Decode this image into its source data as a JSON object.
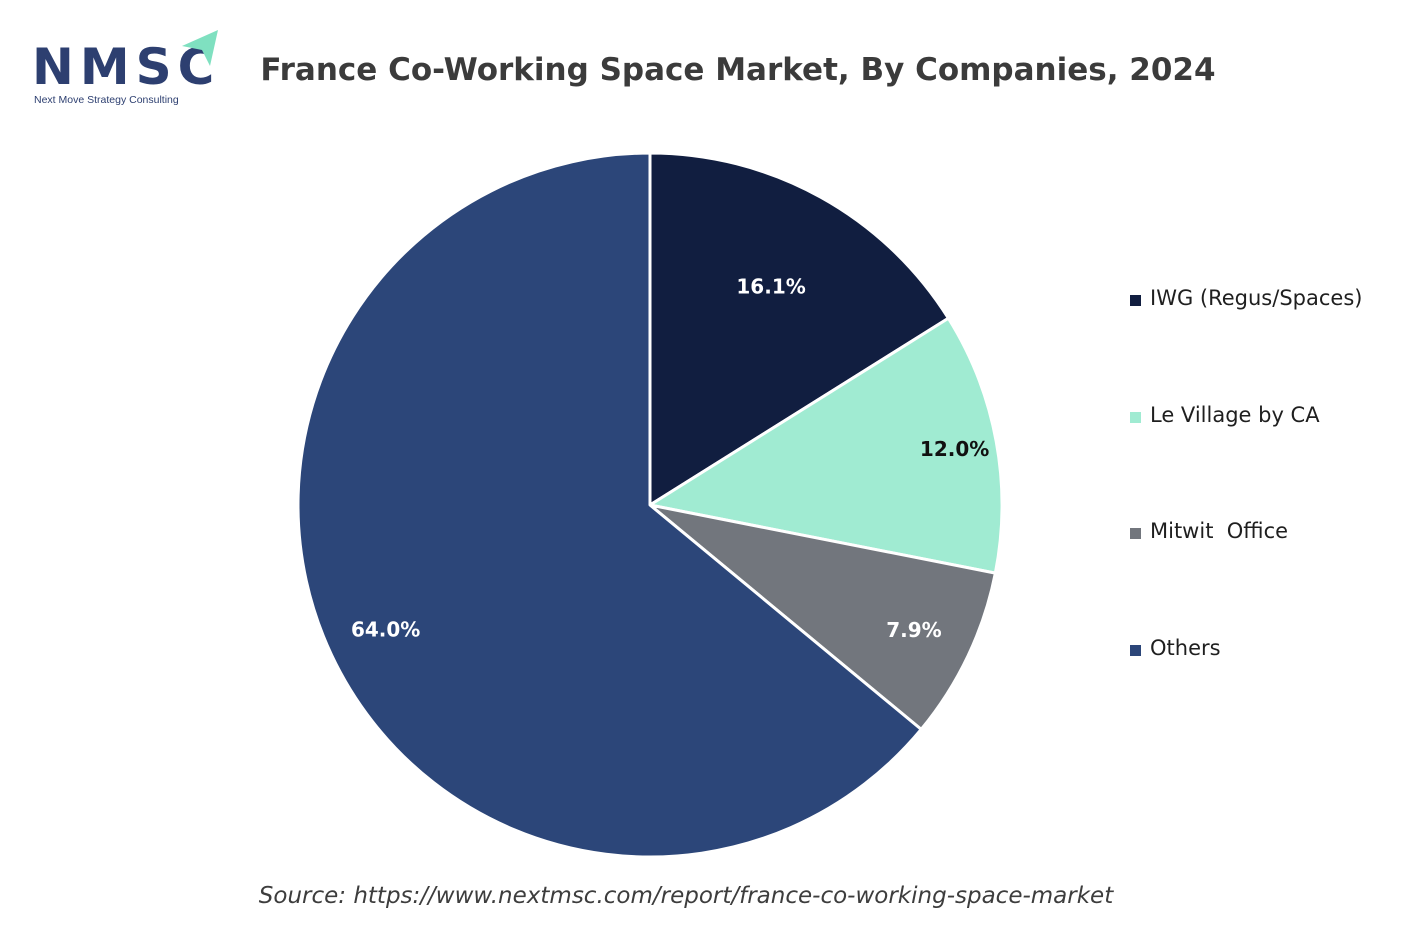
{
  "logo": {
    "text": "NMSC",
    "tagline": "Next Move Strategy Consulting",
    "color": "#2d3f70",
    "accent_color": "#7fe0c0"
  },
  "chart_data": {
    "type": "pie",
    "title": "France Co-Working Space Market, By Companies, 2024",
    "categories": [
      "IWG (Regus/Spaces)",
      "Le Village by CA",
      "Mitwit  Office",
      "Others"
    ],
    "values": [
      16.1,
      12.0,
      7.9,
      64.0
    ],
    "labels": [
      "16.1%",
      "12.0%",
      "7.9%",
      "64.0%"
    ],
    "colors": [
      "#111e40",
      "#a0ebd2",
      "#72767d",
      "#2c4679"
    ],
    "label_colors": [
      "#ffffff",
      "#111111",
      "#ffffff",
      "#ffffff"
    ],
    "start": "12 o'clock",
    "direction": "clockwise",
    "legend_position": "right"
  },
  "source": "Source: https://www.nextmsc.com/report/france-co-working-space-market"
}
